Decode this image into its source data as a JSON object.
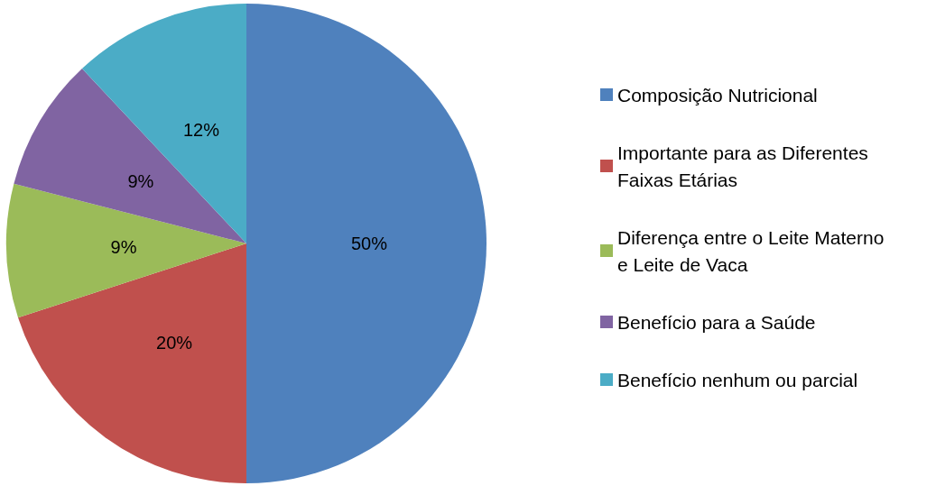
{
  "chart_data": {
    "type": "pie",
    "categories": [
      "Composição Nutricional",
      "Importante para as Diferentes Faixas Etárias",
      "Diferença entre o Leite Materno e Leite de Vaca",
      "Benefício para a Saúde",
      "Benefício nenhum ou parcial"
    ],
    "values": [
      50,
      20,
      9,
      9,
      12
    ],
    "colors": [
      "#4f81bd",
      "#c0504d",
      "#9bbb59",
      "#8064a2",
      "#4bacc6"
    ],
    "value_labels": [
      "50%",
      "20%",
      "9%",
      "9%",
      "12%"
    ],
    "legend": "right"
  }
}
